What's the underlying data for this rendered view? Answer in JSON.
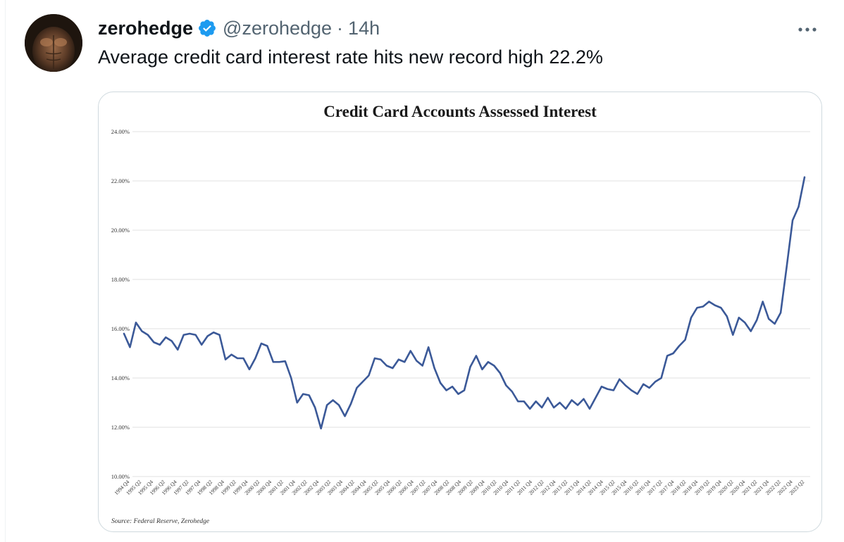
{
  "tweet": {
    "display_name": "zerohedge",
    "handle": "@zerohedge",
    "separator": "·",
    "time": "14h",
    "text": "Average credit card interest rate hits new record high 22.2%",
    "verified_color": "#1d9bf0",
    "more_icon": "more-horizontal-icon"
  },
  "chart_data": {
    "type": "line",
    "title": "Credit Card Accounts Assessed Interest",
    "source": "Source: Federal Reserve, Zerohedge",
    "ylim": [
      10,
      24
    ],
    "y_ticks": [
      "10.00%",
      "12.00%",
      "14.00%",
      "16.00%",
      "18.00%",
      "20.00%",
      "22.00%",
      "24.00%"
    ],
    "x_labels": [
      "1994 Q4",
      "1995 Q2",
      "1995 Q4",
      "1996 Q2",
      "1996 Q4",
      "1997 Q2",
      "1997 Q4",
      "1998 Q2",
      "1998 Q4",
      "1999 Q2",
      "1999 Q4",
      "2000 Q2",
      "2000 Q4",
      "2001 Q2",
      "2001 Q4",
      "2002 Q2",
      "2002 Q4",
      "2003 Q2",
      "2003 Q4",
      "2004 Q2",
      "2004 Q4",
      "2005 Q2",
      "2005 Q4",
      "2006 Q2",
      "2006 Q4",
      "2007 Q2",
      "2007 Q4",
      "2008 Q2",
      "2008 Q4",
      "2009 Q2",
      "2009 Q4",
      "2010 Q2",
      "2010 Q4",
      "2011 Q2",
      "2011 Q4",
      "2012 Q2",
      "2012 Q4",
      "2013 Q2",
      "2013 Q4",
      "2014 Q2",
      "2014 Q4",
      "2015 Q2",
      "2015 Q4",
      "2016 Q2",
      "2016 Q4",
      "2017 Q2",
      "2017 Q4",
      "2018 Q2",
      "2018 Q4",
      "2019 Q2",
      "2019 Q4",
      "2020 Q2",
      "2020 Q4",
      "2021 Q2",
      "2021 Q4",
      "2022 Q2",
      "2022 Q4",
      "2023 Q2"
    ],
    "grid": true,
    "legend": "none",
    "line_color": "#3b5998",
    "series": [
      {
        "values": [
          15.8,
          15.25,
          16.25,
          15.9,
          15.75,
          15.45,
          15.35,
          15.65,
          15.5,
          15.15,
          15.75,
          15.8,
          15.75,
          15.35,
          15.7,
          15.85,
          15.75,
          14.75,
          14.95,
          14.8,
          14.8,
          14.35,
          14.8,
          15.4,
          15.3,
          14.65,
          14.65,
          14.68,
          14.0,
          13.0,
          13.35,
          13.3,
          12.8,
          11.95,
          12.9,
          13.1,
          12.9,
          12.45,
          12.95,
          13.6,
          13.85,
          14.1,
          14.8,
          14.75,
          14.5,
          14.4,
          14.75,
          14.65,
          15.1,
          14.7,
          14.5,
          15.25,
          14.4,
          13.8,
          13.5,
          13.65,
          13.35,
          13.5,
          14.45,
          14.9,
          14.35,
          14.65,
          14.5,
          14.2,
          13.7,
          13.45,
          13.05,
          13.05,
          12.75,
          13.05,
          12.8,
          13.2,
          12.8,
          13.0,
          12.75,
          13.1,
          12.9,
          13.15,
          12.75,
          13.2,
          13.65,
          13.55,
          13.5,
          13.95,
          13.7,
          13.5,
          13.35,
          13.75,
          13.6,
          13.85,
          14.0,
          14.9,
          15.0,
          15.3,
          15.55,
          16.45,
          16.85,
          16.9,
          17.1,
          16.95,
          16.85,
          16.5,
          15.75,
          16.45,
          16.25,
          15.9,
          16.35,
          17.1,
          16.4,
          16.2,
          16.65,
          18.5,
          20.4,
          20.95,
          22.15
        ]
      }
    ]
  }
}
